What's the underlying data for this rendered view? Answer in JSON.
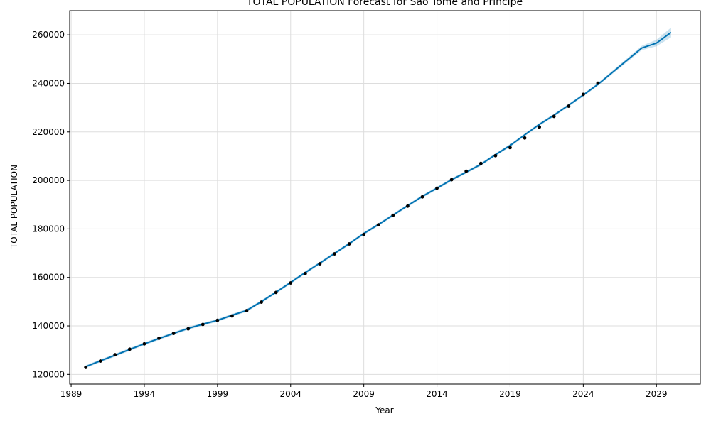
{
  "chart_data": {
    "type": "line",
    "title": "TOTAL POPULATION Forecast for Sao Tome and Principe",
    "xlabel": "Year",
    "ylabel": "TOTAL POPULATION",
    "xlim": [
      1988.9,
      2032.0
    ],
    "ylim": [
      116000,
      270000
    ],
    "x_ticks": [
      1989,
      1994,
      1999,
      2004,
      2009,
      2014,
      2019,
      2024,
      2029
    ],
    "y_ticks": [
      120000,
      140000,
      160000,
      180000,
      200000,
      220000,
      240000,
      260000
    ],
    "grid": true,
    "legend": "none",
    "colors": {
      "forecast_line": "#0072B2",
      "interval_band": "#0072B2",
      "observed_points": "#000000",
      "grid": "#dddddd"
    },
    "series": [
      {
        "kind": "observed",
        "points": [
          [
            1990,
            122900
          ],
          [
            1991,
            125500
          ],
          [
            1992,
            128100
          ],
          [
            1993,
            130400
          ],
          [
            1994,
            132600
          ],
          [
            1995,
            134900
          ],
          [
            1996,
            136900
          ],
          [
            1997,
            138800
          ],
          [
            1998,
            140600
          ],
          [
            1999,
            142300
          ],
          [
            2000,
            144100
          ],
          [
            2001,
            146300
          ],
          [
            2002,
            149800
          ],
          [
            2003,
            153800
          ],
          [
            2004,
            157700
          ],
          [
            2005,
            161600
          ],
          [
            2006,
            165600
          ],
          [
            2007,
            169700
          ],
          [
            2008,
            173800
          ],
          [
            2009,
            177700
          ],
          [
            2010,
            181700
          ],
          [
            2011,
            185600
          ],
          [
            2012,
            189400
          ],
          [
            2013,
            193200
          ],
          [
            2014,
            196800
          ],
          [
            2015,
            200300
          ],
          [
            2016,
            203800
          ],
          [
            2017,
            207000
          ],
          [
            2018,
            210200
          ],
          [
            2019,
            213500
          ],
          [
            2020,
            217500
          ],
          [
            2021,
            222000
          ],
          [
            2022,
            226400
          ],
          [
            2023,
            230600
          ],
          [
            2024,
            235500
          ],
          [
            2025,
            240100
          ]
        ]
      },
      {
        "kind": "forecast",
        "points": [
          [
            1990,
            123200
          ],
          [
            1991,
            125600
          ],
          [
            1992,
            127900
          ],
          [
            1993,
            130300
          ],
          [
            1994,
            132600
          ],
          [
            1995,
            134800
          ],
          [
            1996,
            136900
          ],
          [
            1997,
            139000
          ],
          [
            1998,
            140700
          ],
          [
            1999,
            142300
          ],
          [
            2000,
            144400
          ],
          [
            2001,
            146400
          ],
          [
            2002,
            150000
          ],
          [
            2003,
            153900
          ],
          [
            2004,
            157900
          ],
          [
            2005,
            162000
          ],
          [
            2006,
            165900
          ],
          [
            2007,
            169900
          ],
          [
            2008,
            173900
          ],
          [
            2009,
            178100
          ],
          [
            2010,
            181800
          ],
          [
            2011,
            185700
          ],
          [
            2012,
            189600
          ],
          [
            2013,
            193400
          ],
          [
            2014,
            196800
          ],
          [
            2015,
            200300
          ],
          [
            2016,
            203400
          ],
          [
            2017,
            206600
          ],
          [
            2018,
            210600
          ],
          [
            2019,
            214400
          ],
          [
            2020,
            218800
          ],
          [
            2021,
            223100
          ],
          [
            2022,
            226900
          ],
          [
            2023,
            231000
          ],
          [
            2024,
            235200
          ],
          [
            2025,
            239600
          ],
          [
            2026,
            244600
          ],
          [
            2027,
            249600
          ],
          [
            2028,
            254600
          ],
          [
            2029,
            256600
          ],
          [
            2030,
            261000
          ]
        ],
        "lower": [
          [
            1990,
            122600
          ],
          [
            1991,
            125000
          ],
          [
            1992,
            127300
          ],
          [
            1993,
            129700
          ],
          [
            1994,
            132000
          ],
          [
            1995,
            134200
          ],
          [
            1996,
            136300
          ],
          [
            1997,
            138400
          ],
          [
            1998,
            140100
          ],
          [
            1999,
            141700
          ],
          [
            2000,
            143800
          ],
          [
            2001,
            145800
          ],
          [
            2002,
            149400
          ],
          [
            2003,
            153300
          ],
          [
            2004,
            157300
          ],
          [
            2005,
            161400
          ],
          [
            2006,
            165300
          ],
          [
            2007,
            169300
          ],
          [
            2008,
            173300
          ],
          [
            2009,
            177500
          ],
          [
            2010,
            181200
          ],
          [
            2011,
            185100
          ],
          [
            2012,
            189000
          ],
          [
            2013,
            192800
          ],
          [
            2014,
            196200
          ],
          [
            2015,
            199700
          ],
          [
            2016,
            202800
          ],
          [
            2017,
            206000
          ],
          [
            2018,
            210000
          ],
          [
            2019,
            213800
          ],
          [
            2020,
            218200
          ],
          [
            2021,
            222500
          ],
          [
            2022,
            226300
          ],
          [
            2023,
            230400
          ],
          [
            2024,
            234600
          ],
          [
            2025,
            239000
          ],
          [
            2026,
            243900
          ],
          [
            2027,
            248800
          ],
          [
            2028,
            253700
          ],
          [
            2029,
            255300
          ],
          [
            2030,
            259000
          ]
        ],
        "upper": [
          [
            1990,
            123800
          ],
          [
            1991,
            126200
          ],
          [
            1992,
            128500
          ],
          [
            1993,
            130900
          ],
          [
            1994,
            133200
          ],
          [
            1995,
            135400
          ],
          [
            1996,
            137500
          ],
          [
            1997,
            139600
          ],
          [
            1998,
            141300
          ],
          [
            1999,
            142900
          ],
          [
            2000,
            145000
          ],
          [
            2001,
            147000
          ],
          [
            2002,
            150600
          ],
          [
            2003,
            154500
          ],
          [
            2004,
            158500
          ],
          [
            2005,
            162600
          ],
          [
            2006,
            166500
          ],
          [
            2007,
            170500
          ],
          [
            2008,
            174500
          ],
          [
            2009,
            178700
          ],
          [
            2010,
            182400
          ],
          [
            2011,
            186300
          ],
          [
            2012,
            190200
          ],
          [
            2013,
            194000
          ],
          [
            2014,
            197400
          ],
          [
            2015,
            200900
          ],
          [
            2016,
            204000
          ],
          [
            2017,
            207200
          ],
          [
            2018,
            211200
          ],
          [
            2019,
            215000
          ],
          [
            2020,
            219400
          ],
          [
            2021,
            223700
          ],
          [
            2022,
            227500
          ],
          [
            2023,
            231600
          ],
          [
            2024,
            235800
          ],
          [
            2025,
            240200
          ],
          [
            2026,
            245300
          ],
          [
            2027,
            250400
          ],
          [
            2028,
            255500
          ],
          [
            2029,
            258000
          ],
          [
            2030,
            263000
          ]
        ]
      }
    ]
  }
}
